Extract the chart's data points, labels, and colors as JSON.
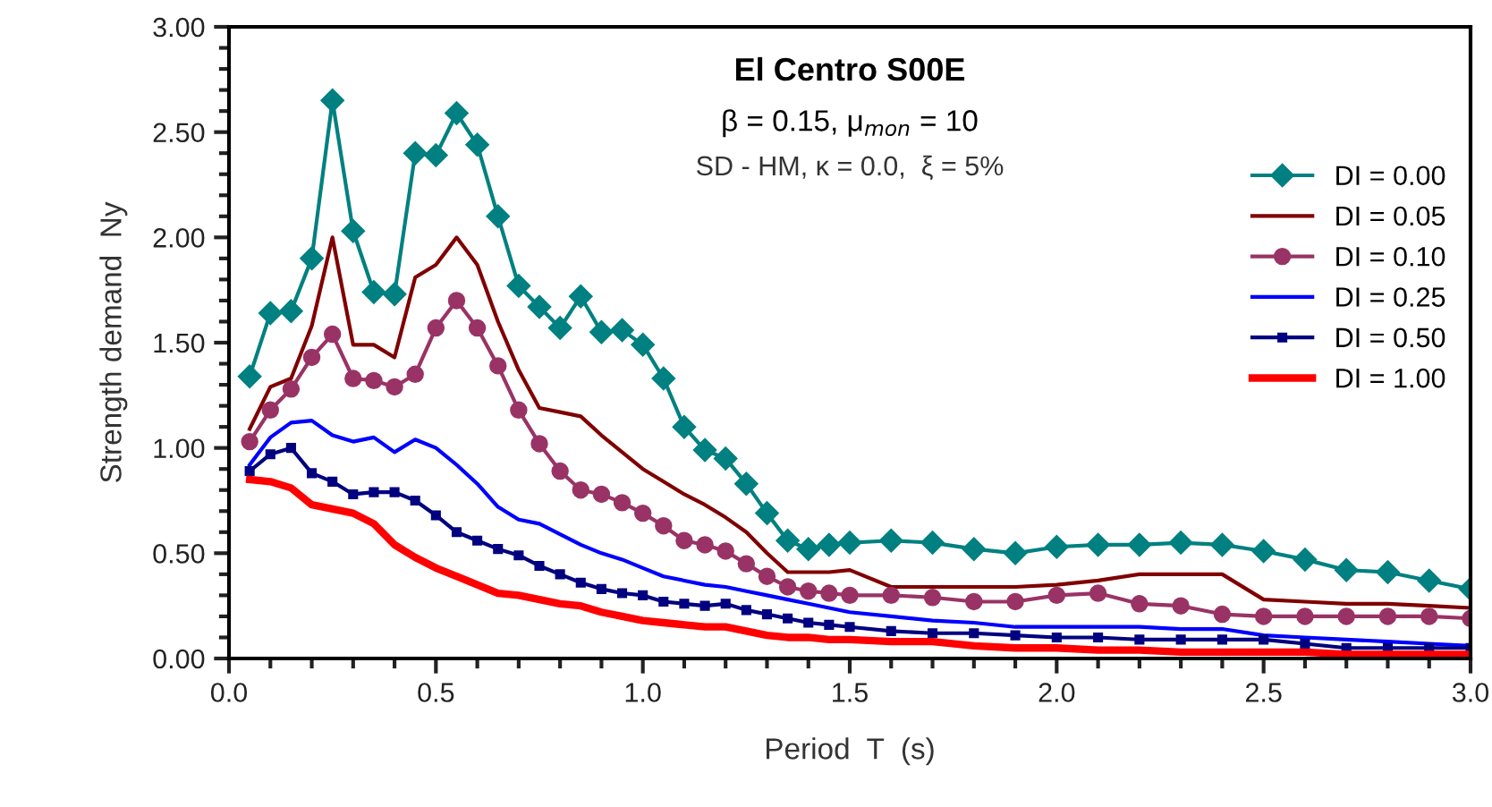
{
  "chart_data": {
    "type": "line",
    "title": "El Centro S00E",
    "subtitle": "β = 0.15, μ$_{mon}$ = 10",
    "annotations": [
      "SD - HM, κ = 0.0,  ξ = 5%"
    ],
    "xlabel": "Period  T  (s)",
    "ylabel": "Strength demand  Ny",
    "x": [
      0.05,
      0.1,
      0.15,
      0.2,
      0.25,
      0.3,
      0.35,
      0.4,
      0.45,
      0.5,
      0.55,
      0.6,
      0.65,
      0.7,
      0.75,
      0.8,
      0.85,
      0.9,
      0.95,
      1.0,
      1.05,
      1.1,
      1.15,
      1.2,
      1.25,
      1.3,
      1.35,
      1.4,
      1.45,
      1.5,
      1.6,
      1.7,
      1.8,
      1.9,
      2.0,
      2.1,
      2.2,
      2.3,
      2.4,
      2.5,
      2.6,
      2.7,
      2.8,
      2.9,
      3.0
    ],
    "series": [
      {
        "name": "DI = 0.00",
        "color": "#008080",
        "marker": "diamond",
        "values": [
          1.34,
          1.64,
          1.65,
          1.9,
          2.65,
          2.03,
          1.74,
          1.73,
          2.4,
          2.39,
          2.59,
          2.44,
          2.1,
          1.77,
          1.67,
          1.57,
          1.72,
          1.55,
          1.56,
          1.49,
          1.33,
          1.1,
          0.99,
          0.95,
          0.83,
          0.69,
          0.56,
          0.52,
          0.54,
          0.55,
          0.56,
          0.55,
          0.52,
          0.5,
          0.53,
          0.54,
          0.54,
          0.55,
          0.54,
          0.51,
          0.47,
          0.42,
          0.41,
          0.37,
          0.33
        ]
      },
      {
        "name": "DI = 0.05",
        "color": "#800000",
        "marker": "none",
        "values": [
          1.09,
          1.29,
          1.33,
          1.58,
          2.0,
          1.49,
          1.49,
          1.43,
          1.81,
          1.87,
          2.0,
          1.87,
          1.6,
          1.37,
          1.19,
          1.17,
          1.15,
          1.06,
          0.98,
          0.9,
          0.84,
          0.78,
          0.73,
          0.67,
          0.6,
          0.5,
          0.41,
          0.41,
          0.41,
          0.42,
          0.34,
          0.34,
          0.34,
          0.34,
          0.35,
          0.37,
          0.4,
          0.4,
          0.4,
          0.28,
          0.27,
          0.26,
          0.26,
          0.25,
          0.24
        ]
      },
      {
        "name": "DI = 0.10",
        "color": "#993366",
        "marker": "circle",
        "values": [
          1.03,
          1.18,
          1.28,
          1.43,
          1.54,
          1.33,
          1.32,
          1.29,
          1.35,
          1.57,
          1.7,
          1.57,
          1.39,
          1.18,
          1.02,
          0.89,
          0.8,
          0.78,
          0.74,
          0.69,
          0.63,
          0.56,
          0.54,
          0.51,
          0.45,
          0.39,
          0.34,
          0.32,
          0.31,
          0.3,
          0.3,
          0.29,
          0.27,
          0.27,
          0.3,
          0.31,
          0.26,
          0.25,
          0.21,
          0.2,
          0.2,
          0.2,
          0.2,
          0.2,
          0.19
        ]
      },
      {
        "name": "DI = 0.25",
        "color": "#0000ff",
        "marker": "none",
        "values": [
          0.92,
          1.05,
          1.12,
          1.13,
          1.06,
          1.03,
          1.05,
          0.98,
          1.04,
          1.0,
          0.92,
          0.83,
          0.72,
          0.66,
          0.64,
          0.59,
          0.54,
          0.5,
          0.47,
          0.43,
          0.39,
          0.37,
          0.35,
          0.34,
          0.32,
          0.3,
          0.28,
          0.26,
          0.24,
          0.22,
          0.2,
          0.18,
          0.17,
          0.15,
          0.15,
          0.15,
          0.15,
          0.14,
          0.14,
          0.11,
          0.1,
          0.09,
          0.08,
          0.07,
          0.06
        ]
      },
      {
        "name": "DI = 0.50",
        "color": "#000080",
        "marker": "square",
        "values": [
          0.89,
          0.97,
          1.0,
          0.88,
          0.84,
          0.78,
          0.79,
          0.79,
          0.75,
          0.68,
          0.6,
          0.56,
          0.52,
          0.49,
          0.44,
          0.4,
          0.36,
          0.33,
          0.31,
          0.3,
          0.27,
          0.26,
          0.25,
          0.26,
          0.23,
          0.21,
          0.19,
          0.17,
          0.16,
          0.15,
          0.13,
          0.12,
          0.12,
          0.11,
          0.1,
          0.1,
          0.09,
          0.09,
          0.09,
          0.09,
          0.07,
          0.05,
          0.05,
          0.05,
          0.05
        ]
      },
      {
        "name": "DI = 1.00",
        "color": "#ff0000",
        "marker": "none",
        "values": [
          0.85,
          0.84,
          0.81,
          0.73,
          0.71,
          0.69,
          0.64,
          0.54,
          0.48,
          0.43,
          0.39,
          0.35,
          0.31,
          0.3,
          0.28,
          0.26,
          0.25,
          0.22,
          0.2,
          0.18,
          0.17,
          0.16,
          0.15,
          0.15,
          0.13,
          0.11,
          0.1,
          0.1,
          0.09,
          0.09,
          0.08,
          0.08,
          0.06,
          0.05,
          0.05,
          0.04,
          0.04,
          0.03,
          0.03,
          0.03,
          0.03,
          0.02,
          0.02,
          0.02,
          0.02
        ]
      }
    ],
    "xlim": [
      0,
      3
    ],
    "ylim": [
      0,
      3
    ],
    "xticks": [
      {
        "value": 0,
        "label": "0.0"
      },
      {
        "value": 0.5,
        "label": "0.5"
      },
      {
        "value": 1,
        "label": "1.0"
      },
      {
        "value": 1.5,
        "label": "1.5"
      },
      {
        "value": 2,
        "label": "2.0"
      },
      {
        "value": 2.5,
        "label": "2.5"
      },
      {
        "value": 3,
        "label": "3.0"
      }
    ],
    "yticks": [
      {
        "value": 0,
        "label": "0.00"
      },
      {
        "value": 0.5,
        "label": "0.50"
      },
      {
        "value": 1,
        "label": "1.00"
      },
      {
        "value": 1.5,
        "label": "1.50"
      },
      {
        "value": 2,
        "label": "2.00"
      },
      {
        "value": 2.5,
        "label": "2.50"
      },
      {
        "value": 3,
        "label": "3.00"
      }
    ],
    "grid": false,
    "legend": "top right",
    "line_style": "solid"
  }
}
